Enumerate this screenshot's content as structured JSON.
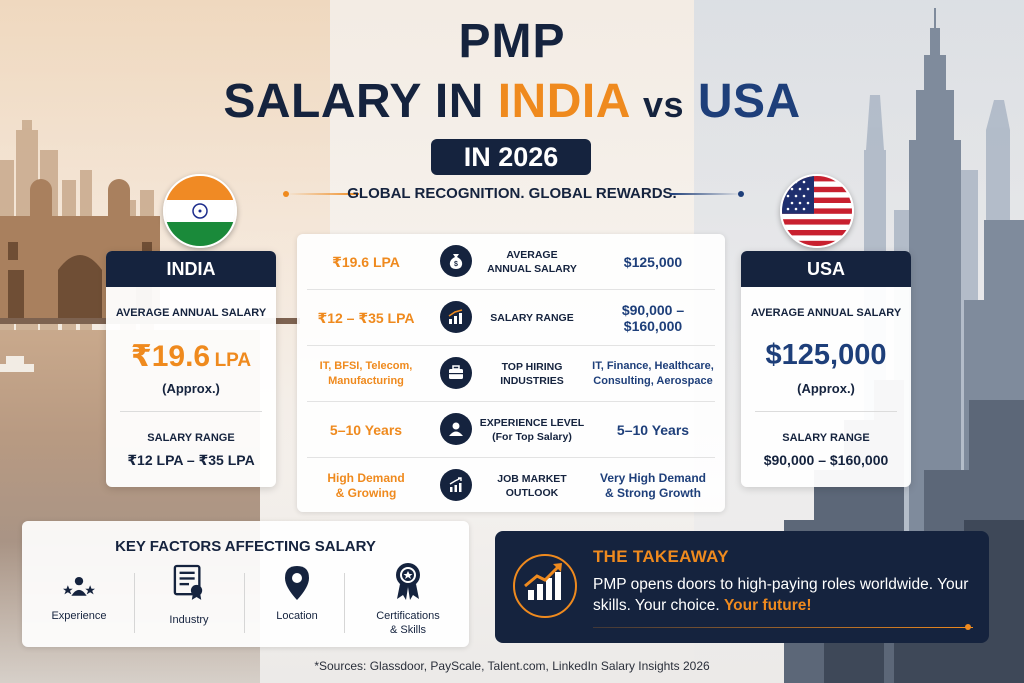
{
  "title": {
    "line1": "PMP",
    "line2_prefix": "SALARY IN",
    "line2_india": "INDIA",
    "line2_vs": "vs",
    "line2_usa": "USA",
    "year_badge": "IN 2026",
    "tagline": "GLOBAL RECOGNITION. GLOBAL REWARDS."
  },
  "india_card": {
    "header": "INDIA",
    "avg_label": "AVERAGE ANNUAL SALARY",
    "avg_value": "₹19.6",
    "avg_unit": "LPA",
    "approx": "(Approx.)",
    "range_label": "SALARY RANGE",
    "range_value": "₹12 LPA – ₹35 LPA"
  },
  "usa_card": {
    "header": "USA",
    "avg_label": "AVERAGE ANNUAL SALARY",
    "avg_value": "$125,000",
    "approx": "(Approx.)",
    "range_label": "SALARY RANGE",
    "range_value": "$90,000 – $160,000"
  },
  "comparison": [
    {
      "india": "₹19.6 LPA",
      "icon": "money-bag-icon",
      "label": "AVERAGE\nANNUAL SALARY",
      "usa": "$125,000"
    },
    {
      "india": "₹12 – ₹35 LPA",
      "icon": "bar-chart-icon",
      "label": "SALARY RANGE",
      "usa": "$90,000 –\n$160,000"
    },
    {
      "india": "IT, BFSI, Telecom,\nManufacturing",
      "icon": "briefcase-icon",
      "label": "TOP HIRING\nINDUSTRIES",
      "usa": "IT, Finance, Healthcare,\nConsulting, Aerospace"
    },
    {
      "india": "5–10 Years",
      "icon": "person-icon",
      "label": "EXPERIENCE LEVEL\n(For Top Salary)",
      "usa": "5–10 Years"
    },
    {
      "india": "High Demand\n& Growing",
      "icon": "trend-up-icon",
      "label": "JOB MARKET\nOUTLOOK",
      "usa": "Very High Demand\n& Strong Growth"
    }
  ],
  "factors": {
    "title": "KEY FACTORS AFFECTING SALARY",
    "items": [
      {
        "label": "Experience",
        "icon": "people-stars-icon"
      },
      {
        "label": "Industry",
        "icon": "certificate-icon"
      },
      {
        "label": "Location",
        "icon": "location-pin-icon"
      },
      {
        "label": "Certifications\n& Skills",
        "icon": "award-ribbon-icon"
      }
    ]
  },
  "takeaway": {
    "title": "THE TAKEAWAY",
    "text": "PMP opens doors to high-paying roles worldwide. Your skills. Your choice.",
    "highlight": "Your future!"
  },
  "sources": "*Sources: Glassdoor, PayScale, Talent.com, LinkedIn Salary Insights 2026",
  "colors": {
    "navy": "#15233e",
    "orange": "#ef8a1e",
    "blue": "#1e3f7a"
  }
}
